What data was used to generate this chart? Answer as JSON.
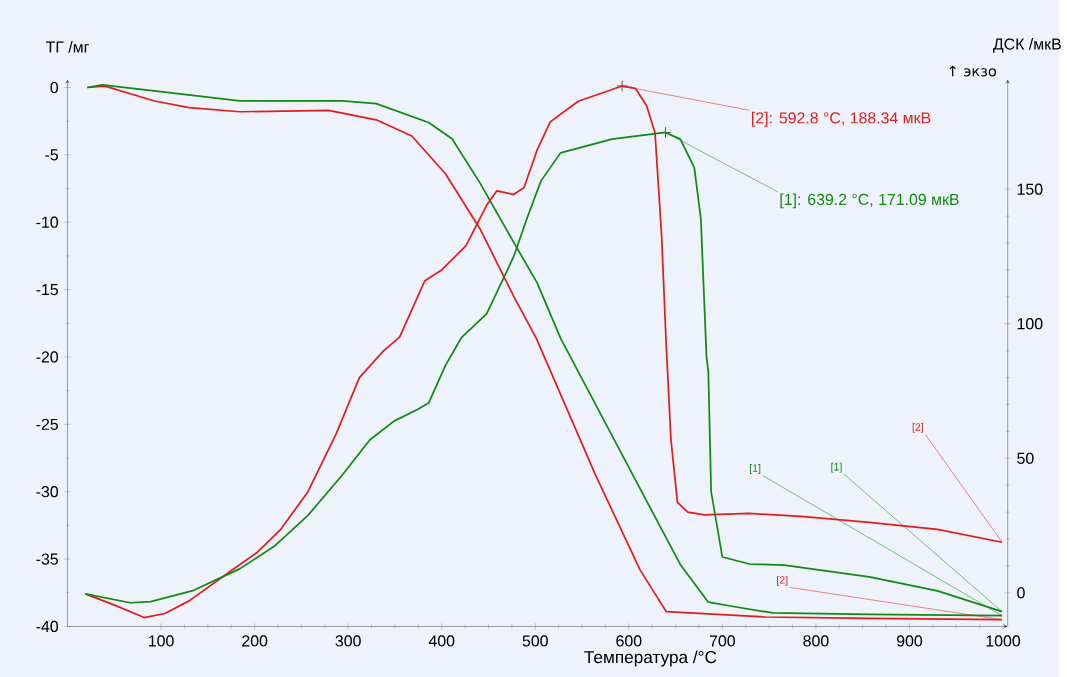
{
  "chart_data": {
    "type": "line",
    "xlabel": "Температура /°C",
    "ylabel": "ТГ /мг",
    "y2label": "ДСК /мкВ",
    "xlim": [
      0,
      1005
    ],
    "xticks": [
      100,
      200,
      300,
      400,
      500,
      600,
      700,
      800,
      900,
      1000
    ],
    "ylim": [
      -40,
      0.6
    ],
    "yticks": [
      -40,
      -35,
      -30,
      -25,
      -20,
      -15,
      -10,
      -5,
      0
    ],
    "y2lim": [
      -12.5,
      190.8
    ],
    "y2ticks": [
      0,
      50,
      100,
      150
    ],
    "series": [
      {
        "color": "#e31d1d",
        "x": [
          21,
          40,
          93,
          130,
          184,
          279,
          330,
          368,
          404,
          441,
          477,
          501,
          564,
          612,
          640,
          746,
          857,
          999
        ],
        "values": [
          0,
          0.1,
          -1.0,
          -1.5,
          -1.8,
          -1.7,
          -2.4,
          -3.6,
          -6.4,
          -10.5,
          -15.5,
          -18.6,
          -28.7,
          -35.8,
          -38.9,
          -39.3,
          -39.4,
          -39.5
        ]
      },
      {
        "color": "#118a11",
        "x": [
          21,
          37,
          111,
          184,
          294,
          330,
          386,
          411,
          441,
          477,
          502,
          527,
          600,
          655,
          685,
          710,
          754,
          857,
          999
        ],
        "values": [
          0,
          0.2,
          -0.4,
          -1.0,
          -1.0,
          -1.2,
          -2.6,
          -3.8,
          -7.1,
          -11.5,
          -14.5,
          -18.6,
          -28.2,
          -35.4,
          -38.2,
          -38.5,
          -39.0,
          -39.1,
          -39.2
        ]
      },
      {
        "color": "#e31d1d",
        "axis": "y2",
        "x": [
          19,
          49,
          82,
          104,
          130,
          176,
          203,
          228,
          257,
          287,
          312,
          338,
          355,
          382,
          400,
          426,
          448,
          459,
          477,
          488,
          502,
          516,
          546,
          592.8,
          607,
          619,
          628,
          635,
          640,
          645,
          652,
          663,
          681,
          729,
          784,
          857,
          930,
          999
        ],
        "values": [
          -0.4,
          -4.4,
          -9.2,
          -7.7,
          -3.0,
          8.5,
          15.1,
          23.6,
          37.6,
          59,
          80,
          90,
          95,
          116,
          120,
          129,
          144,
          149.4,
          148,
          150.6,
          164.6,
          175,
          182.7,
          188.34,
          187.5,
          181,
          171,
          133,
          92,
          57,
          33.6,
          30,
          29,
          29.5,
          28.4,
          26.2,
          23.6,
          18.8
        ]
      },
      {
        "color": "#118a11",
        "axis": "y2",
        "x": [
          19,
          67,
          89,
          133,
          184,
          221,
          257,
          294,
          323,
          349,
          375,
          386,
          404,
          421,
          448,
          477,
          491,
          506,
          527,
          582,
          639.2,
          655,
          670,
          677,
          683,
          685,
          688,
          700,
          729,
          766,
          857,
          930,
          999
        ],
        "values": [
          -0.4,
          -3.7,
          -3.3,
          0.7,
          8.9,
          17.3,
          28.8,
          43.9,
          56.8,
          63.8,
          68.3,
          70.5,
          84.5,
          94.8,
          103.7,
          125,
          139,
          153,
          163.5,
          168.6,
          171.09,
          168.6,
          158,
          139,
          88,
          82,
          37.6,
          13.3,
          10.7,
          10.3,
          5.9,
          0.7,
          -7
        ]
      }
    ],
    "annotations": [
      "↑ экзо",
      {
        "text": "[2]: 592.8 °C, 188.34 мкВ",
        "x": 592.8,
        "y": 0.11
      },
      {
        "text": "[1]: 639.2 °C, 171.09 мкВ",
        "x": 639.2,
        "y": -3.34
      },
      {
        "text": "[1]",
        "x": 999,
        "y": -39.2
      },
      {
        "text": "[1]",
        "x": 999,
        "y": -38.9
      },
      {
        "text": "[2]",
        "x": 999,
        "y": -33.75
      },
      {
        "text": "[2]",
        "x": 999,
        "y": -39.5
      }
    ]
  }
}
